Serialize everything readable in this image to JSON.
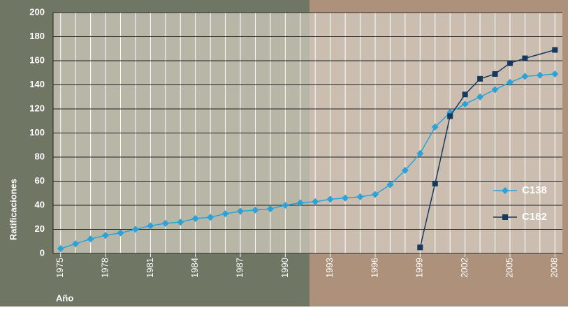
{
  "chart_data": {
    "type": "line",
    "y_label": "Ratificaciones",
    "x_label": "Año",
    "xlim": [
      1974.5,
      2008.5
    ],
    "xticks": [
      1975,
      1978,
      1981,
      1984,
      1987,
      1990,
      1993,
      1996,
      1999,
      2002,
      2005,
      2008
    ],
    "ylim": [
      0,
      200
    ],
    "yticks": [
      0,
      20,
      40,
      60,
      80,
      100,
      120,
      140,
      160,
      180,
      200
    ],
    "grid": true,
    "legend": "right",
    "series": [
      {
        "name": "C138",
        "color": "#2aa3d8",
        "marker": "diamond",
        "x": [
          1975,
          1976,
          1977,
          1978,
          1979,
          1980,
          1981,
          1982,
          1983,
          1984,
          1985,
          1986,
          1987,
          1988,
          1989,
          1990,
          1991,
          1992,
          1993,
          1994,
          1995,
          1996,
          1997,
          1998,
          1999,
          2000,
          2001,
          2002,
          2003,
          2004,
          2005,
          2006,
          2007,
          2008
        ],
        "values": [
          4,
          8,
          12,
          15,
          17,
          20,
          23,
          25,
          26,
          29,
          30,
          33,
          35,
          36,
          37,
          40,
          42,
          43,
          45,
          46,
          47,
          49,
          57,
          69,
          83,
          105,
          117,
          124,
          130,
          136,
          142,
          147,
          148,
          149
        ]
      },
      {
        "name": "C182",
        "color": "#163a5e",
        "marker": "square",
        "x": [
          1999,
          2000,
          2001,
          2002,
          2003,
          2004,
          2005,
          2006,
          2008
        ],
        "values": [
          5,
          58,
          114,
          132,
          145,
          149,
          158,
          162,
          169
        ]
      }
    ]
  }
}
